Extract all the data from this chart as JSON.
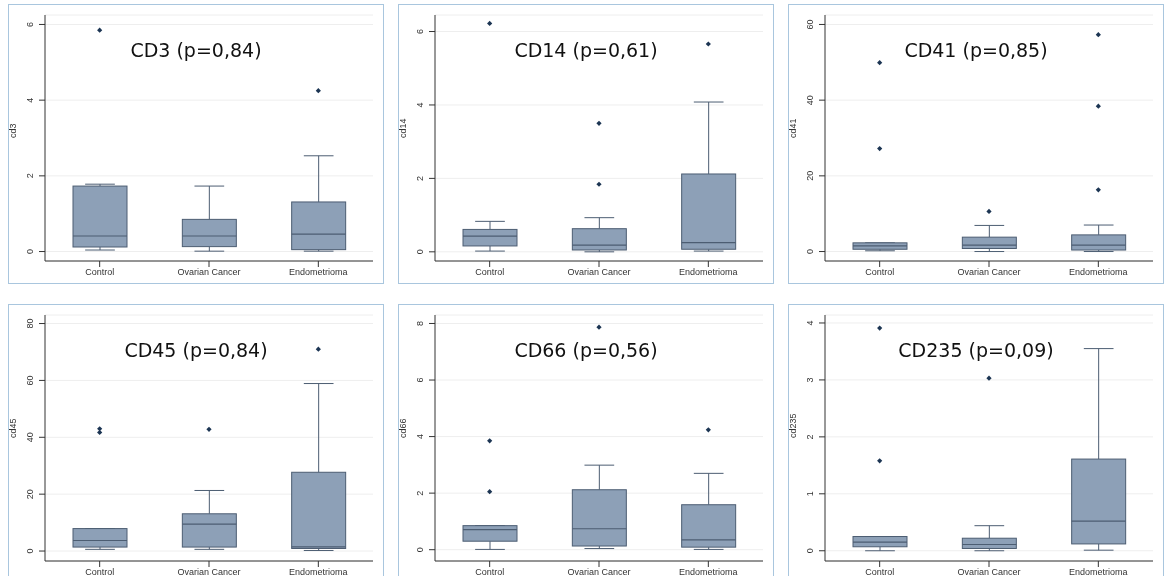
{
  "chart_data": [
    {
      "type": "box",
      "title": "CD3  (p=0,84)",
      "ylabel": "cd3",
      "categories": [
        "Control",
        "Ovarian Cancer",
        "Endometrioma"
      ],
      "ylim": [
        -0.25,
        6.25
      ],
      "yticks": [
        0,
        2,
        4,
        6
      ],
      "grid": "y",
      "color": "#8da0b7",
      "boxes": [
        {
          "low": 0.04,
          "q1": 0.12,
          "median": 0.41,
          "q3": 1.73,
          "high": 1.78,
          "outliers": [
            5.85
          ]
        },
        {
          "low": 0.01,
          "q1": 0.13,
          "median": 0.41,
          "q3": 0.85,
          "high": 1.73
        },
        {
          "low": 0.01,
          "q1": 0.05,
          "median": 0.46,
          "q3": 1.31,
          "high": 2.53,
          "outliers": [
            4.25
          ]
        }
      ]
    },
    {
      "type": "box",
      "title": "CD14  (p=0,61)",
      "ylabel": "cd14",
      "categories": [
        "Control",
        "Ovarian Cancer",
        "Endometrioma"
      ],
      "ylim": [
        -0.25,
        6.45
      ],
      "yticks": [
        0,
        2,
        4,
        6
      ],
      "grid": "y",
      "color": "#8da0b7",
      "boxes": [
        {
          "low": 0.02,
          "q1": 0.16,
          "median": 0.43,
          "q3": 0.61,
          "high": 0.83,
          "outliers": [
            6.22
          ]
        },
        {
          "low": 0,
          "q1": 0.05,
          "median": 0.18,
          "q3": 0.63,
          "high": 0.93,
          "outliers": [
            1.84,
            3.5
          ]
        },
        {
          "low": 0.02,
          "q1": 0.07,
          "median": 0.25,
          "q3": 2.12,
          "high": 4.08,
          "outliers": [
            5.66
          ]
        }
      ]
    },
    {
      "type": "box",
      "title": "CD41  (p=0,85)",
      "ylabel": "cd41",
      "categories": [
        "Control",
        "Ovarian Cancer",
        "Endometrioma"
      ],
      "ylim": [
        -2.5,
        62.5
      ],
      "yticks": [
        0,
        20,
        40,
        60
      ],
      "grid": "y",
      "color": "#8da0b7",
      "boxes": [
        {
          "low": 0.2,
          "q1": 0.6,
          "median": 1.5,
          "q3": 2.3,
          "high": 2.3,
          "outliers": [
            27.2,
            49.9
          ]
        },
        {
          "low": 0,
          "q1": 0.8,
          "median": 1.7,
          "q3": 3.8,
          "high": 6.9,
          "outliers": [
            10.6
          ]
        },
        {
          "low": 0,
          "q1": 0.4,
          "median": 1.7,
          "q3": 4.4,
          "high": 7,
          "outliers": [
            16.3,
            38.4,
            57.3
          ]
        }
      ]
    },
    {
      "type": "box",
      "title": "CD45  (p=0,84)",
      "ylabel": "cd45",
      "categories": [
        "Control",
        "Ovarian Cancer",
        "Endometrioma"
      ],
      "ylim": [
        -3.5,
        83
      ],
      "yticks": [
        0,
        20,
        40,
        60,
        80
      ],
      "grid": "y",
      "color": "#8da0b7",
      "boxes": [
        {
          "low": 0.6,
          "q1": 1.4,
          "median": 3.7,
          "q3": 7.9,
          "high": 7.9,
          "outliers": [
            41.7,
            43
          ]
        },
        {
          "low": 0.6,
          "q1": 1.4,
          "median": 9.5,
          "q3": 13.1,
          "high": 21.3,
          "outliers": [
            42.8
          ]
        },
        {
          "low": 0.2,
          "q1": 0.9,
          "median": 1.5,
          "q3": 27.7,
          "high": 58.9,
          "outliers": [
            71
          ]
        }
      ]
    },
    {
      "type": "box",
      "title": "CD66  (p=0,56)",
      "ylabel": "cd66",
      "categories": [
        "Control",
        "Ovarian Cancer",
        "Endometrioma"
      ],
      "ylim": [
        -0.4,
        8.3
      ],
      "yticks": [
        0,
        2,
        4,
        6,
        8
      ],
      "grid": "y",
      "color": "#8da0b7",
      "boxes": [
        {
          "low": 0.01,
          "q1": 0.3,
          "median": 0.71,
          "q3": 0.85,
          "high": 0.85,
          "outliers": [
            2.05,
            3.85
          ]
        },
        {
          "low": 0.04,
          "q1": 0.13,
          "median": 0.74,
          "q3": 2.12,
          "high": 2.99,
          "outliers": [
            7.87
          ]
        },
        {
          "low": 0.01,
          "q1": 0.09,
          "median": 0.35,
          "q3": 1.59,
          "high": 2.7,
          "outliers": [
            4.24
          ]
        }
      ]
    },
    {
      "type": "box",
      "title": "CD235  (p=0,09)",
      "ylabel": "cd235",
      "categories": [
        "Control",
        "Ovarian Cancer",
        "Endometrioma"
      ],
      "ylim": [
        -0.18,
        4.14
      ],
      "yticks": [
        0,
        1,
        2,
        3,
        4
      ],
      "grid": "y",
      "color": "#8da0b7",
      "boxes": [
        {
          "low": 0,
          "q1": 0.07,
          "median": 0.15,
          "q3": 0.25,
          "high": 0.25,
          "outliers": [
            1.58,
            3.91
          ]
        },
        {
          "low": 0,
          "q1": 0.04,
          "median": 0.11,
          "q3": 0.22,
          "high": 0.44,
          "outliers": [
            3.03
          ]
        },
        {
          "low": 0.01,
          "q1": 0.12,
          "median": 0.52,
          "q3": 1.61,
          "high": 3.55
        }
      ]
    }
  ]
}
